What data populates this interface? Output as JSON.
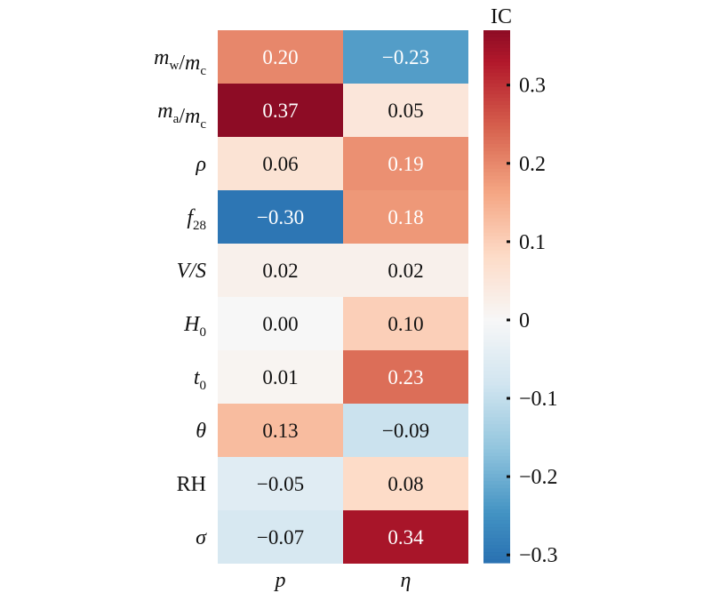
{
  "chart_data": {
    "type": "heatmap",
    "title": "",
    "rows": [
      {
        "label": "m_w/m_c",
        "main1": "m",
        "sub1": "w",
        "main2": "m",
        "sub2": "c"
      },
      {
        "label": "m_a/m_c",
        "main1": "m",
        "sub1": "a",
        "main2": "m",
        "sub2": "c"
      },
      {
        "label": "ρ",
        "main1": "ρ"
      },
      {
        "label": "f_28",
        "main1": "f",
        "sub1": "28"
      },
      {
        "label": "V/S",
        "main1": "V/S"
      },
      {
        "label": "H_0",
        "main1": "H",
        "sub1": "0"
      },
      {
        "label": "t_0",
        "main1": "t",
        "sub1": "0"
      },
      {
        "label": "θ",
        "main1": "θ"
      },
      {
        "label": "RH",
        "main1": "RH",
        "upright": true
      },
      {
        "label": "σ",
        "main1": "σ"
      }
    ],
    "columns": [
      "p",
      "η"
    ],
    "values": [
      [
        0.2,
        -0.23
      ],
      [
        0.37,
        0.05
      ],
      [
        0.06,
        0.19
      ],
      [
        -0.3,
        0.18
      ],
      [
        0.02,
        0.02
      ],
      [
        0.0,
        0.1
      ],
      [
        0.01,
        0.23
      ],
      [
        0.13,
        -0.09
      ],
      [
        -0.05,
        0.08
      ],
      [
        -0.07,
        0.34
      ]
    ],
    "colorbar": {
      "label": "IC",
      "range": [
        -0.31,
        0.37
      ],
      "ticks": [
        0.3,
        0.2,
        0.1,
        0,
        -0.1,
        -0.2,
        -0.3
      ],
      "tick_labels": [
        "0.3",
        "0.2",
        "0.1",
        "0",
        "−0.1",
        "−0.2",
        "−0.3"
      ],
      "colormap": "RdBu_r"
    }
  }
}
